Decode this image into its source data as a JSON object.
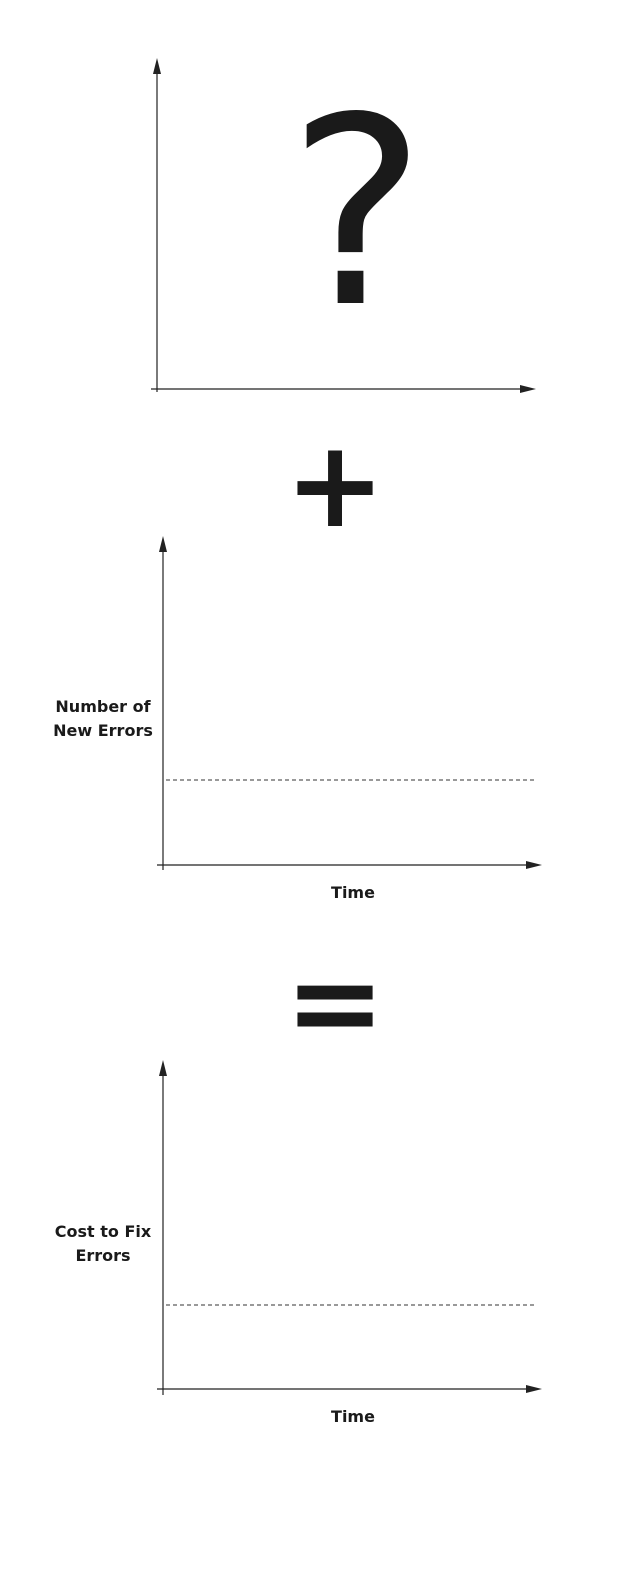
{
  "panels": [
    {
      "id": "unknown",
      "symbol": "?",
      "ylabel": [],
      "xlabel": "",
      "has_baseline": false
    },
    {
      "id": "errors",
      "symbol": "",
      "ylabel": [
        "Number of",
        "New Errors"
      ],
      "xlabel": "Time",
      "has_baseline": true
    },
    {
      "id": "cost",
      "symbol": "",
      "ylabel": [
        "Cost to Fix",
        "Errors"
      ],
      "xlabel": "Time",
      "has_baseline": true
    }
  ],
  "operators": {
    "plus": "+",
    "equals": "="
  }
}
